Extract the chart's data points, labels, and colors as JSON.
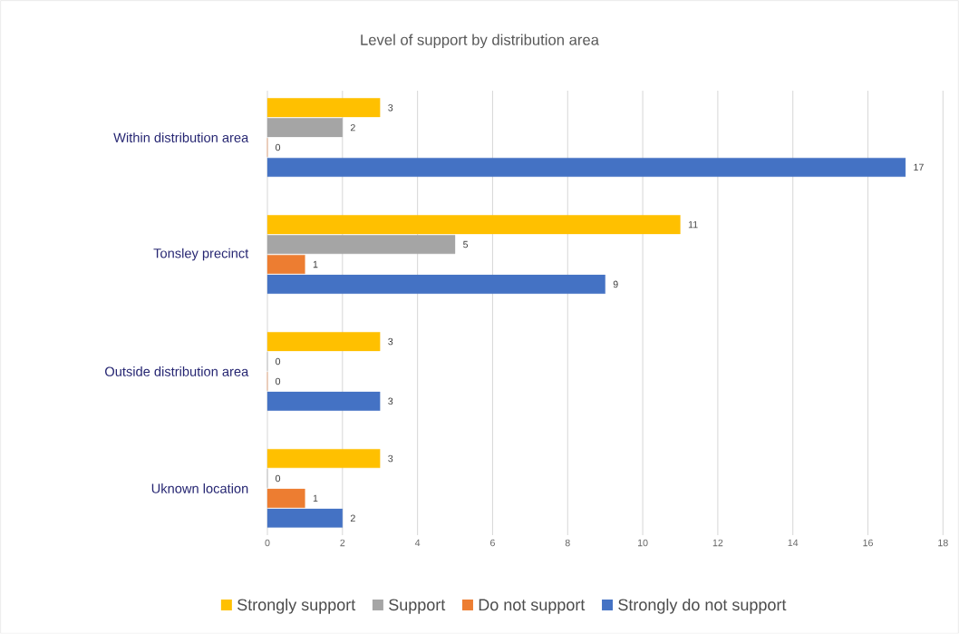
{
  "chart_data": {
    "type": "bar",
    "orientation": "horizontal",
    "title": "Level of support by distribution area",
    "categories": [
      "Within distribution area",
      "Tonsley precinct",
      "Outside distribution area",
      "Uknown location"
    ],
    "series": [
      {
        "name": "Strongly support",
        "color": "#ffc000",
        "values": [
          3,
          11,
          3,
          3
        ]
      },
      {
        "name": "Support",
        "color": "#a5a5a5",
        "values": [
          2,
          5,
          0,
          0
        ]
      },
      {
        "name": "Do not support",
        "color": "#ed7d31",
        "values": [
          0,
          1,
          0,
          1
        ]
      },
      {
        "name": "Strongly do not support",
        "color": "#4472c4",
        "values": [
          17,
          9,
          3,
          2
        ]
      }
    ],
    "xlim": [
      0,
      18
    ],
    "xticks": [
      0,
      2,
      4,
      6,
      8,
      10,
      12,
      14,
      16,
      18
    ],
    "grid": "x",
    "legend": "bottom",
    "data_labels": true
  }
}
